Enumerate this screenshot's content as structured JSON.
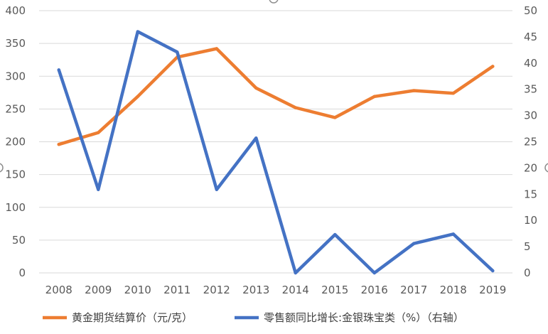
{
  "chart_data": {
    "type": "line",
    "categories": [
      "2008",
      "2009",
      "2010",
      "2011",
      "2012",
      "2013",
      "2014",
      "2015",
      "2016",
      "2017",
      "2018",
      "2019"
    ],
    "series": [
      {
        "name": "黄金期货结算价（元/克）",
        "axis": "left",
        "color": "#ED7D31",
        "values": [
          196,
          214,
          269,
          329,
          342,
          282,
          252,
          237,
          269,
          278,
          274,
          315
        ]
      },
      {
        "name": "零售额同比增长:金银珠宝类（%）（右轴）",
        "axis": "right",
        "color": "#4472C4",
        "values": [
          38.7,
          15.9,
          46.0,
          42.1,
          15.9,
          25.7,
          0.0,
          7.3,
          0.0,
          5.6,
          7.4,
          0.4
        ]
      }
    ],
    "y_left": {
      "min": 0,
      "max": 400,
      "ticks": [
        "0",
        "50",
        "100",
        "150",
        "200",
        "250",
        "300",
        "350",
        "400"
      ]
    },
    "y_right": {
      "min": 0,
      "max": 50,
      "ticks": [
        "0",
        "5",
        "10",
        "15",
        "20",
        "25",
        "30",
        "35",
        "40",
        "45",
        "50"
      ]
    },
    "grid": true,
    "legend_position": "bottom"
  }
}
